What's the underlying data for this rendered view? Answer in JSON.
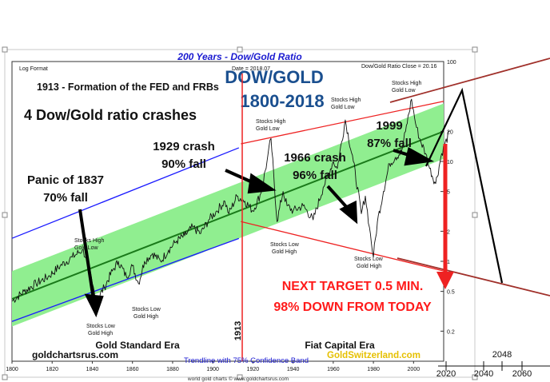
{
  "chart_data": {
    "type": "line",
    "title": "200 Years - Dow/Gold Ratio",
    "scale": "log",
    "format_label": "Log Format",
    "date_label": "Date = 2018.07",
    "close_label": "Dow/Gold Ratio Close = 20.16",
    "headline_1": "DOW/GOLD",
    "headline_2": "1800-2018",
    "fed_note": "1913 - Formation of the FED and FRBs",
    "crash_count_note": "4 Dow/Gold ratio crashes",
    "fed_year_label": "1913",
    "xlim": [
      1800,
      2015
    ],
    "ylim": [
      0.1,
      100
    ],
    "x_ticks": [
      "1800",
      "1820",
      "1840",
      "1860",
      "1880",
      "1900",
      "1920",
      "1940",
      "1960",
      "1980",
      "2000"
    ],
    "y_ticks": [
      {
        "value": 100,
        "label": "100"
      },
      {
        "value": 20,
        "label": "20"
      },
      {
        "value": 10,
        "label": "10"
      },
      {
        "value": 5,
        "label": "5"
      },
      {
        "value": 2,
        "label": "2"
      },
      {
        "value": 1,
        "label": "1"
      },
      {
        "value": 0.5,
        "label": "0.5"
      },
      {
        "value": 0.2,
        "label": "0.2"
      }
    ],
    "series": [
      {
        "x": [
          1800,
          1806,
          1812,
          1818,
          1824,
          1830,
          1835,
          1837,
          1840,
          1842,
          1846,
          1850,
          1853,
          1857,
          1860,
          1863,
          1866,
          1870,
          1874,
          1878,
          1882,
          1886,
          1890,
          1894,
          1898,
          1902,
          1906,
          1908,
          1912,
          1916,
          1920,
          1924,
          1927,
          1929,
          1932,
          1935,
          1937,
          1940,
          1945,
          1950,
          1955,
          1960,
          1962,
          1966,
          1970,
          1974,
          1976,
          1978,
          1980,
          1982,
          1985,
          1988,
          1991,
          1994,
          1996,
          1999,
          2001,
          2003,
          2006,
          2008,
          2011,
          2014,
          2018
        ],
        "y": [
          0.4,
          0.5,
          0.6,
          0.7,
          0.9,
          1.1,
          1.3,
          1.1,
          0.6,
          0.4,
          0.55,
          0.8,
          1.0,
          0.7,
          0.9,
          0.6,
          1.0,
          1.2,
          1.0,
          1.3,
          1.6,
          1.8,
          2.2,
          1.9,
          2.6,
          3.2,
          4.0,
          3.0,
          4.5,
          4.0,
          3.2,
          4.8,
          10.0,
          17.0,
          2.5,
          5.0,
          3.6,
          3.2,
          3.6,
          2.6,
          5.5,
          10.0,
          8.5,
          26.0,
          10.0,
          3.0,
          4.5,
          2.2,
          1.1,
          2.5,
          5.0,
          9.5,
          11.0,
          12.5,
          20.0,
          42.0,
          24.0,
          17.0,
          12.0,
          8.5,
          6.0,
          12.0,
          20.0
        ]
      }
    ],
    "trend_band": {
      "center_start": 0.42,
      "center_end": 20,
      "ratio_upper": 1.9,
      "ratio_lower": 0.53
    },
    "outer_channel": {
      "upper_start": 1.7,
      "upper_end": 90,
      "lower_start": 0.09,
      "lower_end": 4.2
    },
    "fiat_channel": {
      "upper": [
        [
          1914,
          15
        ],
        [
          2015,
          40
        ]
      ],
      "lower": [
        [
          1914,
          2.5
        ],
        [
          2015,
          0.8
        ]
      ]
    },
    "annotations": [
      {
        "id": "panic",
        "lines": [
          "Panic of 1837",
          "70% fall"
        ]
      },
      {
        "id": "c1929",
        "lines": [
          "1929 crash",
          "90% fall"
        ]
      },
      {
        "id": "c1966",
        "lines": [
          "1966 crash",
          "96% fall"
        ]
      },
      {
        "id": "c1999",
        "lines": [
          "1999",
          "87% fall"
        ]
      }
    ],
    "small_labels": {
      "stocks_high_gold_low": "Stocks High",
      "gold_low": "Gold Low",
      "stocks_low": "Stocks Low",
      "gold_high": "Gold High"
    },
    "target_line_1": "NEXT TARGET 0.5 MIN.",
    "target_line_2": "98% DOWN FROM TODAY",
    "era_gold": "Gold Standard Era",
    "era_fiat": "Fiat Capital Era",
    "site_left": "goldchartsrus.com",
    "site_right": "GoldSwitzerland.com",
    "trendline_note": "Trendline with 75% Confidence Band",
    "footer_small": "world gold charts © www.goldchartsrus.com",
    "future_axis": {
      "ticks": [
        "2020",
        "2040",
        "2060"
      ],
      "marker": "2048"
    },
    "colors": {
      "band": "#90ee90",
      "trend": "#1a7a1a",
      "blue_channel": "#1a1aff",
      "red_channel": "#ee2222",
      "title": "#1a1ad0",
      "headline": "#1a4f8f",
      "target_text": "#ff1a1a",
      "extension_lines": "#a0302a",
      "gold_site": "#e6c000",
      "price_line": "#111111"
    }
  }
}
